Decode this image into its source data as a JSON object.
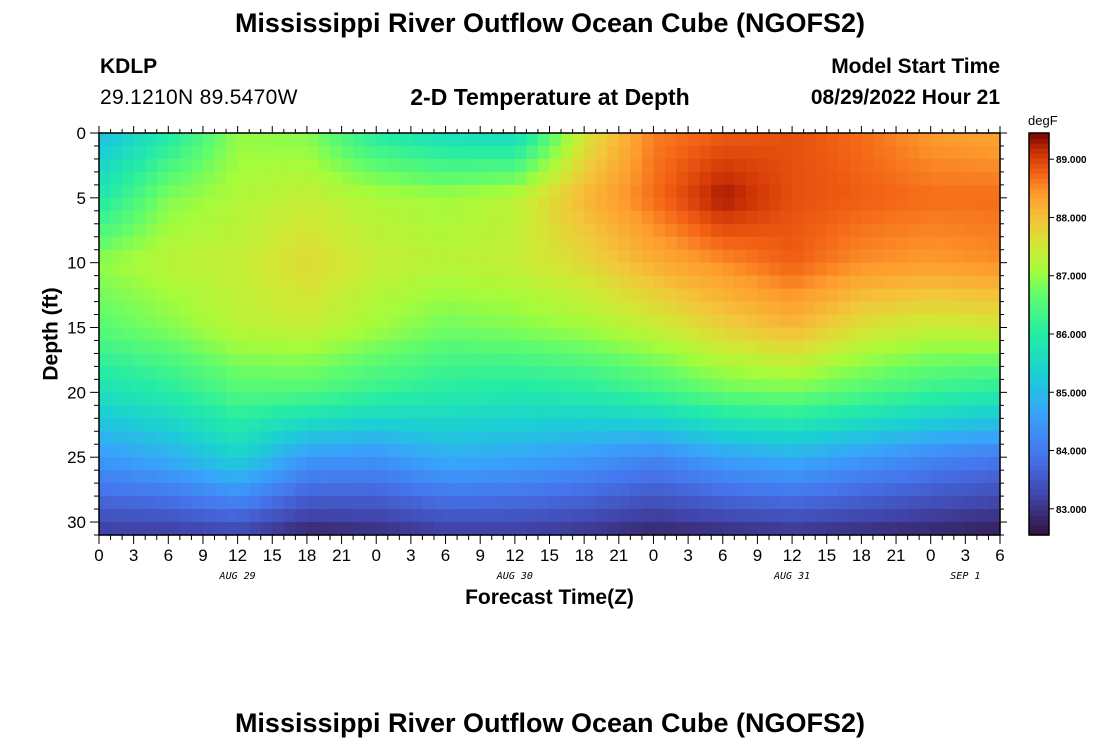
{
  "header": {
    "title": "Mississippi River Outflow Ocean Cube (NGOFS2)",
    "station_id": "KDLP",
    "station_coords": "29.1210N  89.5470W",
    "subtitle": "2-D Temperature at Depth",
    "model_start_label": "Model Start Time",
    "model_start_value": "08/29/2022 Hour 21"
  },
  "footer": {
    "title": "Mississippi River Outflow Ocean Cube (NGOFS2)"
  },
  "chart_data": {
    "type": "heatmap",
    "title": "2-D Temperature at Depth",
    "xlabel": "Forecast Time(Z)",
    "ylabel": "Depth (ft)",
    "x_tick_labels": [
      "0",
      "3",
      "6",
      "9",
      "12",
      "15",
      "18",
      "21",
      "0",
      "3",
      "6",
      "9",
      "12",
      "15",
      "18",
      "21",
      "0",
      "3",
      "6",
      "9",
      "12",
      "15",
      "18",
      "21",
      "0",
      "3",
      "6"
    ],
    "x_range_hours": [
      0,
      78
    ],
    "date_labels": [
      {
        "text": "AUG 29",
        "hour": 12
      },
      {
        "text": "AUG 30",
        "hour": 36
      },
      {
        "text": "AUG 31",
        "hour": 60
      },
      {
        "text": "SEP 1",
        "hour": 75
      }
    ],
    "y_tick_labels": [
      "0",
      "5",
      "10",
      "15",
      "20",
      "25",
      "30"
    ],
    "y_range_ft": [
      0,
      31
    ],
    "colorbar": {
      "unit": "degF",
      "tick_labels": [
        "83.000",
        "84.000",
        "85.000",
        "86.000",
        "87.000",
        "88.000",
        "89.000"
      ],
      "range": [
        82.55,
        89.45
      ]
    },
    "grid_hours": [
      0,
      6,
      12,
      18,
      24,
      30,
      36,
      42,
      48,
      54,
      60,
      66,
      72,
      78
    ],
    "grid_depths_ft": [
      0,
      5,
      10,
      15,
      20,
      25,
      31
    ],
    "temperature_grid_degF": [
      [
        85.0,
        85.9,
        87.0,
        86.9,
        86.0,
        85.6,
        85.5,
        87.5,
        88.6,
        88.8,
        88.9,
        88.7,
        88.4,
        88.3
      ],
      [
        85.9,
        86.9,
        87.2,
        87.4,
        87.2,
        87.1,
        87.3,
        88.1,
        88.7,
        89.3,
        88.9,
        88.8,
        88.7,
        88.7
      ],
      [
        87.0,
        87.3,
        87.4,
        87.7,
        87.4,
        87.3,
        87.4,
        87.7,
        88.2,
        88.5,
        88.8,
        88.5,
        88.4,
        88.5
      ],
      [
        86.6,
        86.9,
        87.3,
        87.4,
        87.1,
        86.8,
        86.9,
        87.1,
        87.4,
        87.8,
        88.1,
        87.6,
        87.4,
        87.5
      ],
      [
        85.7,
        86.0,
        86.5,
        86.5,
        86.2,
        86.0,
        85.9,
        86.0,
        86.3,
        86.7,
        86.8,
        86.5,
        86.2,
        86.0
      ],
      [
        84.5,
        84.8,
        85.4,
        84.5,
        84.4,
        84.8,
        84.7,
        84.5,
        84.2,
        84.6,
        84.8,
        84.5,
        84.2,
        84.0
      ],
      [
        83.1,
        83.1,
        83.2,
        82.8,
        82.9,
        83.1,
        83.1,
        83.0,
        82.8,
        82.9,
        83.0,
        82.9,
        82.8,
        82.7
      ]
    ]
  }
}
